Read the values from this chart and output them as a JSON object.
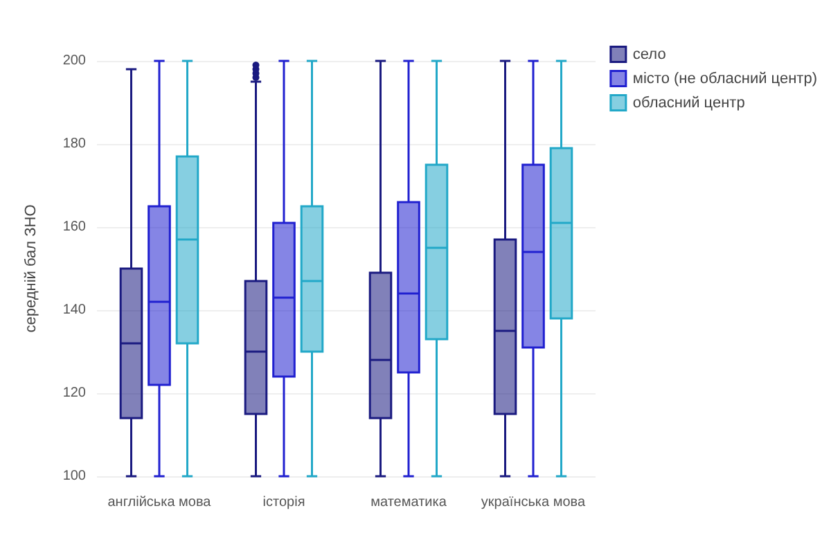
{
  "chart_data": {
    "type": "box",
    "ylabel": "середній бал ЗНО",
    "categories": [
      "англійська мова",
      "історія",
      "математика",
      "українська мова"
    ],
    "series": [
      {
        "name": "село",
        "color": "#1a1a80",
        "boxes": [
          {
            "low": 100,
            "q1": 114,
            "median": 132,
            "q3": 150,
            "high": 198
          },
          {
            "low": 100,
            "q1": 115,
            "median": 130,
            "q3": 147,
            "high": 195,
            "outliers": [
              196,
              197,
              198,
              199
            ]
          },
          {
            "low": 100,
            "q1": 114,
            "median": 128,
            "q3": 149,
            "high": 200
          },
          {
            "low": 100,
            "q1": 115,
            "median": 135,
            "q3": 157,
            "high": 200
          }
        ]
      },
      {
        "name": "місто (не обласний центр)",
        "color": "#2020d0",
        "boxes": [
          {
            "low": 100,
            "q1": 122,
            "median": 142,
            "q3": 165,
            "high": 200
          },
          {
            "low": 100,
            "q1": 124,
            "median": 143,
            "q3": 161,
            "high": 200
          },
          {
            "low": 100,
            "q1": 125,
            "median": 144,
            "q3": 166,
            "high": 200
          },
          {
            "low": 100,
            "q1": 131,
            "median": 154,
            "q3": 175,
            "high": 200
          }
        ]
      },
      {
        "name": "обласний центр",
        "color": "#22a8c8",
        "boxes": [
          {
            "low": 100,
            "q1": 132,
            "median": 157,
            "q3": 177,
            "high": 200
          },
          {
            "low": 100,
            "q1": 130,
            "median": 147,
            "q3": 165,
            "high": 200
          },
          {
            "low": 100,
            "q1": 133,
            "median": 155,
            "q3": 175,
            "high": 200
          },
          {
            "low": 100,
            "q1": 138,
            "median": 161,
            "q3": 179,
            "high": 200
          }
        ]
      }
    ],
    "ylim": [
      100,
      200
    ],
    "yticks": [
      100,
      120,
      140,
      160,
      180,
      200
    ],
    "grid": "y",
    "legend": "top right"
  }
}
